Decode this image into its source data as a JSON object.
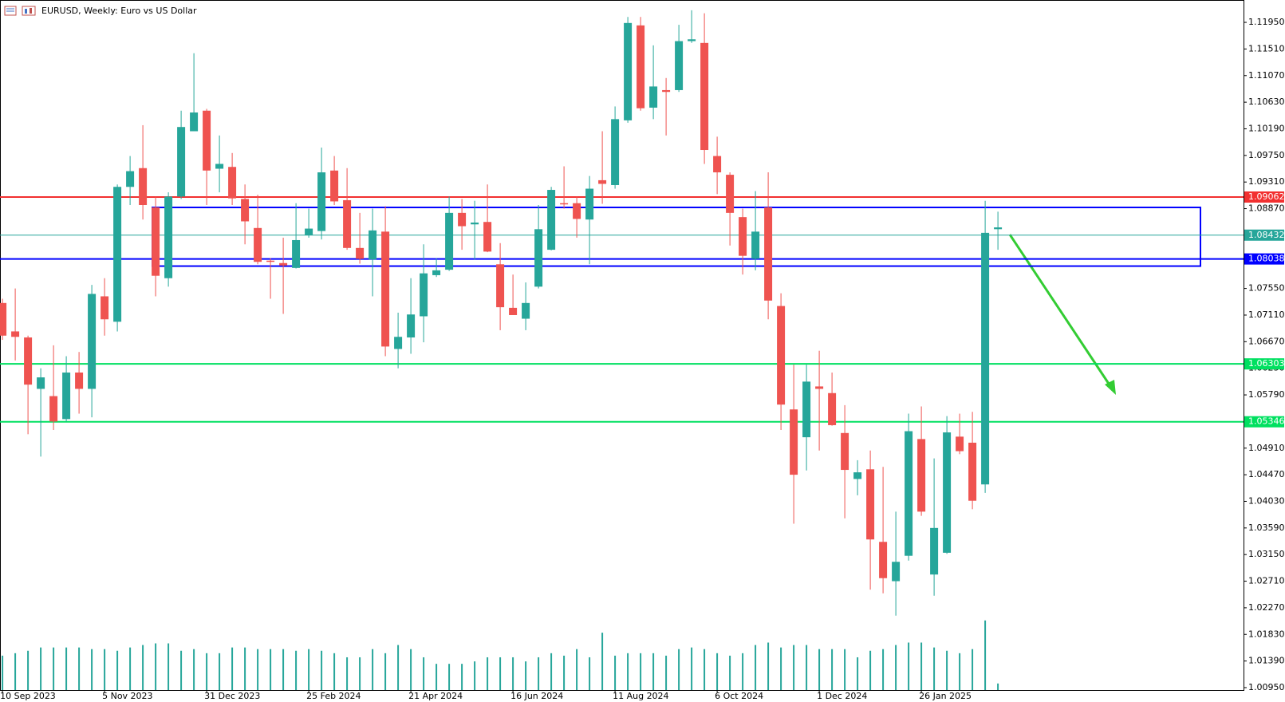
{
  "chart_data": {
    "type": "candlestick",
    "title": "EURUSD, Weekly:  Euro vs US Dollar",
    "categories": [
      "10 Sep 2023",
      null,
      null,
      null,
      null,
      null,
      null,
      null,
      "5 Nov 2023",
      null,
      null,
      null,
      null,
      null,
      null,
      null,
      "31 Dec 2023",
      null,
      null,
      null,
      null,
      null,
      null,
      null,
      "25 Feb 2024",
      null,
      null,
      null,
      null,
      null,
      null,
      null,
      "21 Apr 2024",
      null,
      null,
      null,
      null,
      null,
      null,
      null,
      "16 Jun 2024",
      null,
      null,
      null,
      null,
      null,
      null,
      null,
      "11 Aug 2024",
      null,
      null,
      null,
      null,
      null,
      null,
      null,
      "6 Oct 2024",
      null,
      null,
      null,
      null,
      null,
      null,
      null,
      "1 Dec 2024",
      null,
      null,
      null,
      null,
      null,
      null,
      null,
      "26 Jan 2025",
      null,
      null,
      null,
      null,
      null,
      null
    ],
    "open": [
      1.0731,
      1.0684,
      1.0674,
      1.0589,
      1.0577,
      1.0539,
      1.0616,
      1.0589,
      1.0742,
      1.07,
      1.0923,
      1.0954,
      1.0889,
      1.0772,
      1.0907,
      1.1015,
      1.1049,
      1.0953,
      1.0956,
      1.0903,
      1.0855,
      1.0801,
      1.0797,
      1.0789,
      1.0843,
      1.085,
      1.095,
      1.0901,
      1.0822,
      1.0803,
      1.0849,
      1.0655,
      1.0674,
      1.0709,
      1.0777,
      1.0786,
      1.088,
      1.0861,
      1.0865,
      1.0795,
      1.0723,
      1.0705,
      1.0758,
      1.0819,
      1.0896,
      1.0896,
      1.0869,
      1.0934,
      1.0926,
      1.1033,
      1.119,
      1.1054,
      1.1083,
      1.1083,
      1.1164,
      1.1161,
      1.0974,
      1.0943,
      1.0873,
      1.0804,
      1.0889,
      1.0726,
      1.0555,
      1.0509,
      1.0593,
      1.0582,
      1.0516,
      1.044,
      1.0456,
      1.0336,
      1.0271,
      1.0313,
      1.0506,
      1.0282,
      1.0318,
      1.051,
      1.05,
      1.0431,
      1.0853
    ],
    "high": [
      1.0738,
      1.0755,
      1.0677,
      1.0623,
      1.0661,
      1.0643,
      1.065,
      1.0761,
      1.0772,
      1.0927,
      1.0974,
      1.1025,
      1.0907,
      1.0914,
      1.1049,
      1.1144,
      1.1052,
      1.1008,
      1.0979,
      1.0927,
      1.091,
      1.0805,
      1.0839,
      1.0896,
      1.0887,
      1.0988,
      1.0974,
      1.0954,
      1.088,
      1.0887,
      1.0891,
      1.0715,
      1.0772,
      1.0828,
      1.0805,
      1.0907,
      1.0903,
      1.09,
      1.0927,
      1.083,
      1.0778,
      1.0765,
      1.0893,
      1.0923,
      1.0957,
      1.0907,
      1.0941,
      1.1015,
      1.1056,
      1.1204,
      1.1204,
      1.1157,
      1.1103,
      1.1191,
      1.1215,
      1.121,
      1.1006,
      1.0947,
      1.0887,
      1.0916,
      1.0947,
      1.0747,
      1.0629,
      1.0629,
      1.0652,
      1.0616,
      1.0562,
      1.0471,
      1.0487,
      1.046,
      1.0386,
      1.0548,
      1.056,
      1.0474,
      1.0544,
      1.0548,
      1.0551,
      1.09,
      1.0882
    ],
    "low": [
      1.067,
      1.0636,
      1.0514,
      1.0477,
      1.0521,
      1.0535,
      1.0548,
      1.0542,
      1.0677,
      1.0684,
      1.0893,
      1.0869,
      1.0742,
      1.0758,
      1.0903,
      1.1015,
      1.0893,
      1.0914,
      1.0893,
      1.0828,
      1.0795,
      1.0738,
      1.0713,
      1.0788,
      1.0839,
      1.0836,
      1.0893,
      1.0819,
      1.0796,
      1.0742,
      1.0643,
      1.0623,
      1.0647,
      1.0666,
      1.0774,
      1.0784,
      1.0819,
      1.0803,
      1.0815,
      1.0686,
      1.0711,
      1.0686,
      1.0755,
      1.0818,
      1.0887,
      1.0839,
      1.0795,
      1.0895,
      1.092,
      1.1029,
      1.1049,
      1.1035,
      1.1008,
      1.108,
      1.1161,
      1.0961,
      1.0911,
      1.0826,
      1.0778,
      1.0785,
      1.0704,
      1.0521,
      1.0366,
      1.0454,
      1.0487,
      1.0528,
      1.0375,
      1.0413,
      1.0257,
      1.0251,
      1.0214,
      1.0305,
      1.0379,
      1.0247,
      1.0316,
      1.0481,
      1.039,
      1.0417,
      1.0819
    ],
    "close": [
      1.0677,
      1.0675,
      1.0596,
      1.0608,
      1.0535,
      1.0616,
      1.0589,
      1.0746,
      1.0704,
      1.0923,
      1.0949,
      1.0893,
      1.0776,
      1.0907,
      1.1022,
      1.1046,
      1.095,
      1.0961,
      1.0904,
      1.0866,
      1.0799,
      1.0799,
      1.0793,
      1.0835,
      1.0854,
      1.0947,
      1.0899,
      1.0822,
      1.0804,
      1.0851,
      1.0659,
      1.0675,
      1.0712,
      1.078,
      1.0785,
      1.088,
      1.0858,
      1.0864,
      1.0816,
      1.0724,
      1.0711,
      1.0731,
      1.0853,
      1.0918,
      1.0895,
      1.087,
      1.092,
      1.0928,
      1.1035,
      1.1194,
      1.1053,
      1.1089,
      1.108,
      1.1164,
      1.1167,
      1.0984,
      1.0947,
      1.088,
      1.0809,
      1.0849,
      1.0735,
      1.0563,
      1.0447,
      1.0601,
      1.0589,
      1.0529,
      1.0455,
      1.0451,
      1.034,
      1.0276,
      1.0303,
      1.0519,
      1.0386,
      1.0359,
      1.0517,
      1.0486,
      1.0404,
      1.0847,
      1.0856
    ],
    "volumes": [
      42,
      45,
      48,
      52,
      52,
      52,
      52,
      50,
      50,
      48,
      52,
      55,
      57,
      57,
      48,
      50,
      45,
      45,
      52,
      52,
      50,
      50,
      50,
      48,
      50,
      48,
      45,
      40,
      40,
      50,
      45,
      55,
      50,
      40,
      32,
      32,
      32,
      35,
      40,
      40,
      40,
      35,
      40,
      45,
      42,
      50,
      40,
      70,
      42,
      45,
      45,
      45,
      42,
      50,
      52,
      50,
      45,
      42,
      45,
      55,
      58,
      52,
      55,
      55,
      50,
      50,
      50,
      40,
      48,
      50,
      55,
      58,
      58,
      52,
      48,
      45,
      50,
      85,
      8
    ],
    "up_color": "#26a69a",
    "down_color": "#ef5350",
    "volume_color": "#26a69a",
    "ylim": [
      1.0091,
      1.1232
    ],
    "yticks": [
      {
        "value": 1.1195,
        "label": "1.11950"
      },
      {
        "value": 1.1151,
        "label": "1.11510"
      },
      {
        "value": 1.1107,
        "label": "1.11070"
      },
      {
        "value": 1.1063,
        "label": "1.10630"
      },
      {
        "value": 1.1019,
        "label": "1.10190"
      },
      {
        "value": 1.0975,
        "label": "1.09750"
      },
      {
        "value": 1.0931,
        "label": "1.09310"
      },
      {
        "value": 1.0887,
        "label": "1.08870"
      },
      {
        "value": 1.0843,
        "label": "1.08430"
      },
      {
        "value": 1.0799,
        "label": "1.07990"
      },
      {
        "value": 1.0755,
        "label": "1.07550"
      },
      {
        "value": 1.0711,
        "label": "1.07110"
      },
      {
        "value": 1.0667,
        "label": "1.06670"
      },
      {
        "value": 1.0623,
        "label": "1.06230"
      },
      {
        "value": 1.0579,
        "label": "1.05790"
      },
      {
        "value": 1.0535,
        "label": "1.05350"
      },
      {
        "value": 1.0491,
        "label": "1.04910"
      },
      {
        "value": 1.0447,
        "label": "1.04470"
      },
      {
        "value": 1.0403,
        "label": "1.04030"
      },
      {
        "value": 1.0359,
        "label": "1.03590"
      },
      {
        "value": 1.0315,
        "label": "1.03150"
      },
      {
        "value": 1.0271,
        "label": "1.02710"
      },
      {
        "value": 1.0227,
        "label": "1.02270"
      },
      {
        "value": 1.0183,
        "label": "1.01830"
      },
      {
        "value": 1.0139,
        "label": "1.01390"
      },
      {
        "value": 1.0095,
        "label": "1.00950"
      }
    ],
    "levels": [
      {
        "value": 1.09062,
        "label": "1.09062",
        "color": "#f23030"
      },
      {
        "value": 1.08432,
        "label": "1.08432",
        "color": "#26a69a"
      },
      {
        "value": 1.08038,
        "label": "1.08038",
        "color": "#0000ff"
      },
      {
        "value": 1.06303,
        "label": "1.06303",
        "color": "#00e060"
      },
      {
        "value": 1.05346,
        "label": "1.05346",
        "color": "#00e060"
      }
    ],
    "zone": {
      "top": 1.0889,
      "bottom": 1.0792,
      "color": "#0000ff"
    }
  }
}
